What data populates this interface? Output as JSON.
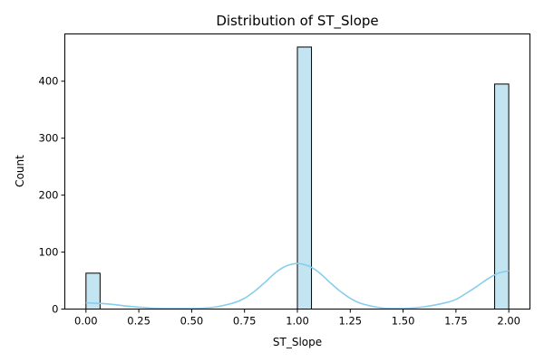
{
  "colors": {
    "bar_fill": "#c3e5f1",
    "kde_line": "#87ceeb",
    "background": "#ffffff"
  },
  "chart_data": {
    "type": "bar",
    "title": "Distribution of ST_Slope",
    "xlabel": "ST_Slope",
    "ylabel": "Count",
    "xlim": [
      -0.1,
      2.1
    ],
    "ylim": [
      0,
      483
    ],
    "xticks": [
      0.0,
      0.25,
      0.5,
      0.75,
      1.0,
      1.25,
      1.5,
      1.75,
      2.0
    ],
    "xtick_labels": [
      "0.00",
      "0.25",
      "0.50",
      "0.75",
      "1.00",
      "1.25",
      "1.50",
      "1.75",
      "2.00"
    ],
    "yticks": [
      0,
      100,
      200,
      300,
      400
    ],
    "ytick_labels": [
      "0",
      "100",
      "200",
      "300",
      "400"
    ],
    "bin_width": 0.0667,
    "bars": [
      {
        "x": 0.0,
        "count": 63
      },
      {
        "x": 1.0,
        "count": 460
      },
      {
        "x": 1.933,
        "count": 395
      }
    ],
    "kde": {
      "x": [
        0.0,
        0.1,
        0.2,
        0.3,
        0.4,
        0.5,
        0.6,
        0.7,
        0.75,
        0.8,
        0.85,
        0.9,
        0.95,
        1.0,
        1.05,
        1.1,
        1.15,
        1.2,
        1.25,
        1.3,
        1.4,
        1.5,
        1.6,
        1.7,
        1.75,
        1.8,
        1.85,
        1.9,
        1.95,
        2.0
      ],
      "y": [
        11,
        9,
        5,
        2,
        1,
        1,
        3,
        11,
        19,
        32,
        48,
        65,
        76,
        80,
        76,
        65,
        48,
        32,
        19,
        10,
        2,
        1,
        4,
        11,
        17,
        28,
        40,
        53,
        63,
        67
      ]
    },
    "grid": false,
    "legend": "none"
  }
}
